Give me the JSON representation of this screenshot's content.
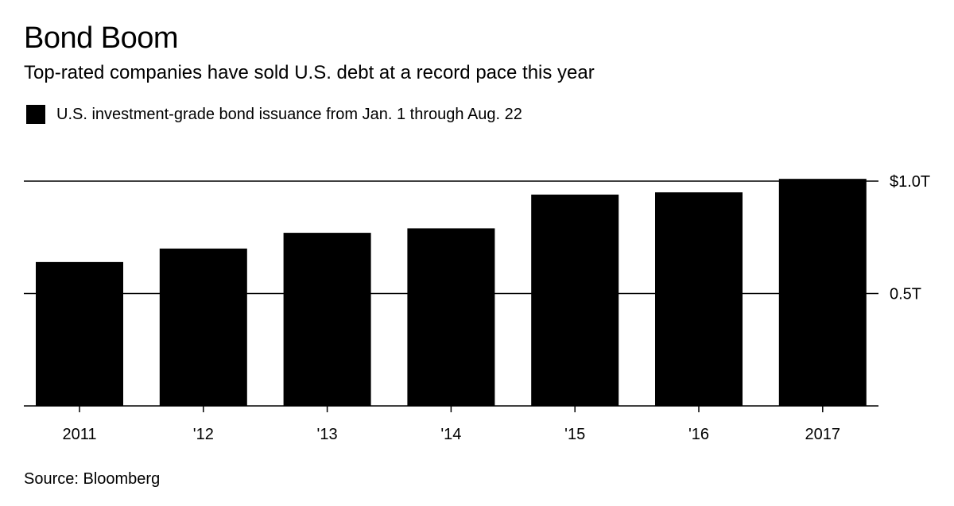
{
  "title": "Bond Boom",
  "subtitle": "Top-rated companies have sold U.S. debt at a record pace this year",
  "source": "Source: Bloomberg",
  "colors": {
    "bar": "#000000",
    "background": "#ffffff",
    "gridline": "#000000"
  },
  "chart_data": {
    "type": "bar",
    "categories": [
      "2011",
      "'12",
      "'13",
      "'14",
      "'15",
      "'16",
      "2017"
    ],
    "series": [
      {
        "name": "U.S. investment-grade bond issuance from Jan. 1 through Aug. 22",
        "values": [
          0.64,
          0.7,
          0.77,
          0.79,
          0.94,
          0.95,
          1.01
        ]
      }
    ],
    "y_ticks": [
      {
        "value": 0.5,
        "label": "0.5T"
      },
      {
        "value": 1.0,
        "label": "$1.0T"
      }
    ],
    "ylim": [
      0,
      1.0
    ],
    "y_axis_side": "right",
    "grid": true,
    "legend_position": "top-left"
  }
}
